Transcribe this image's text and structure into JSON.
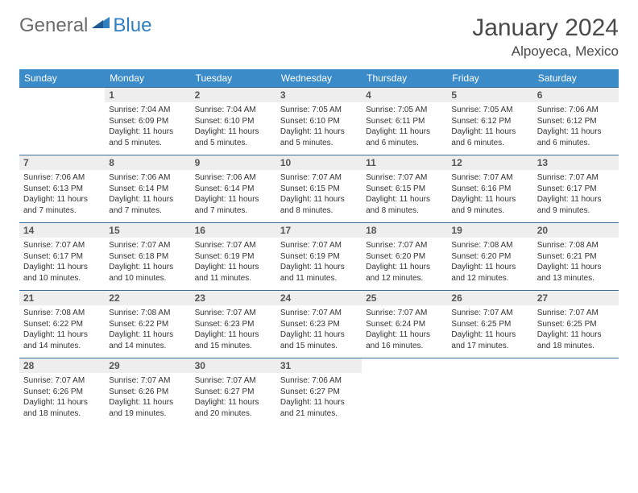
{
  "logo": {
    "part1": "General",
    "part2": "Blue"
  },
  "title": "January 2024",
  "location": "Alpoyeca, Mexico",
  "colors": {
    "header_bg": "#3b8bc9",
    "header_text": "#ffffff",
    "daynum_bg": "#eeeeee",
    "border": "#3b6c9a",
    "logo_gray": "#6b6b6b",
    "logo_blue": "#2f7fc1"
  },
  "weekdays": [
    "Sunday",
    "Monday",
    "Tuesday",
    "Wednesday",
    "Thursday",
    "Friday",
    "Saturday"
  ],
  "weeks": [
    [
      null,
      {
        "n": "1",
        "sr": "7:04 AM",
        "ss": "6:09 PM",
        "dl": "11 hours and 5 minutes."
      },
      {
        "n": "2",
        "sr": "7:04 AM",
        "ss": "6:10 PM",
        "dl": "11 hours and 5 minutes."
      },
      {
        "n": "3",
        "sr": "7:05 AM",
        "ss": "6:10 PM",
        "dl": "11 hours and 5 minutes."
      },
      {
        "n": "4",
        "sr": "7:05 AM",
        "ss": "6:11 PM",
        "dl": "11 hours and 6 minutes."
      },
      {
        "n": "5",
        "sr": "7:05 AM",
        "ss": "6:12 PM",
        "dl": "11 hours and 6 minutes."
      },
      {
        "n": "6",
        "sr": "7:06 AM",
        "ss": "6:12 PM",
        "dl": "11 hours and 6 minutes."
      }
    ],
    [
      {
        "n": "7",
        "sr": "7:06 AM",
        "ss": "6:13 PM",
        "dl": "11 hours and 7 minutes."
      },
      {
        "n": "8",
        "sr": "7:06 AM",
        "ss": "6:14 PM",
        "dl": "11 hours and 7 minutes."
      },
      {
        "n": "9",
        "sr": "7:06 AM",
        "ss": "6:14 PM",
        "dl": "11 hours and 7 minutes."
      },
      {
        "n": "10",
        "sr": "7:07 AM",
        "ss": "6:15 PM",
        "dl": "11 hours and 8 minutes."
      },
      {
        "n": "11",
        "sr": "7:07 AM",
        "ss": "6:15 PM",
        "dl": "11 hours and 8 minutes."
      },
      {
        "n": "12",
        "sr": "7:07 AM",
        "ss": "6:16 PM",
        "dl": "11 hours and 9 minutes."
      },
      {
        "n": "13",
        "sr": "7:07 AM",
        "ss": "6:17 PM",
        "dl": "11 hours and 9 minutes."
      }
    ],
    [
      {
        "n": "14",
        "sr": "7:07 AM",
        "ss": "6:17 PM",
        "dl": "11 hours and 10 minutes."
      },
      {
        "n": "15",
        "sr": "7:07 AM",
        "ss": "6:18 PM",
        "dl": "11 hours and 10 minutes."
      },
      {
        "n": "16",
        "sr": "7:07 AM",
        "ss": "6:19 PM",
        "dl": "11 hours and 11 minutes."
      },
      {
        "n": "17",
        "sr": "7:07 AM",
        "ss": "6:19 PM",
        "dl": "11 hours and 11 minutes."
      },
      {
        "n": "18",
        "sr": "7:07 AM",
        "ss": "6:20 PM",
        "dl": "11 hours and 12 minutes."
      },
      {
        "n": "19",
        "sr": "7:08 AM",
        "ss": "6:20 PM",
        "dl": "11 hours and 12 minutes."
      },
      {
        "n": "20",
        "sr": "7:08 AM",
        "ss": "6:21 PM",
        "dl": "11 hours and 13 minutes."
      }
    ],
    [
      {
        "n": "21",
        "sr": "7:08 AM",
        "ss": "6:22 PM",
        "dl": "11 hours and 14 minutes."
      },
      {
        "n": "22",
        "sr": "7:08 AM",
        "ss": "6:22 PM",
        "dl": "11 hours and 14 minutes."
      },
      {
        "n": "23",
        "sr": "7:07 AM",
        "ss": "6:23 PM",
        "dl": "11 hours and 15 minutes."
      },
      {
        "n": "24",
        "sr": "7:07 AM",
        "ss": "6:23 PM",
        "dl": "11 hours and 15 minutes."
      },
      {
        "n": "25",
        "sr": "7:07 AM",
        "ss": "6:24 PM",
        "dl": "11 hours and 16 minutes."
      },
      {
        "n": "26",
        "sr": "7:07 AM",
        "ss": "6:25 PM",
        "dl": "11 hours and 17 minutes."
      },
      {
        "n": "27",
        "sr": "7:07 AM",
        "ss": "6:25 PM",
        "dl": "11 hours and 18 minutes."
      }
    ],
    [
      {
        "n": "28",
        "sr": "7:07 AM",
        "ss": "6:26 PM",
        "dl": "11 hours and 18 minutes."
      },
      {
        "n": "29",
        "sr": "7:07 AM",
        "ss": "6:26 PM",
        "dl": "11 hours and 19 minutes."
      },
      {
        "n": "30",
        "sr": "7:07 AM",
        "ss": "6:27 PM",
        "dl": "11 hours and 20 minutes."
      },
      {
        "n": "31",
        "sr": "7:06 AM",
        "ss": "6:27 PM",
        "dl": "11 hours and 21 minutes."
      },
      null,
      null,
      null
    ]
  ],
  "labels": {
    "sunrise": "Sunrise:",
    "sunset": "Sunset:",
    "daylight": "Daylight:"
  }
}
